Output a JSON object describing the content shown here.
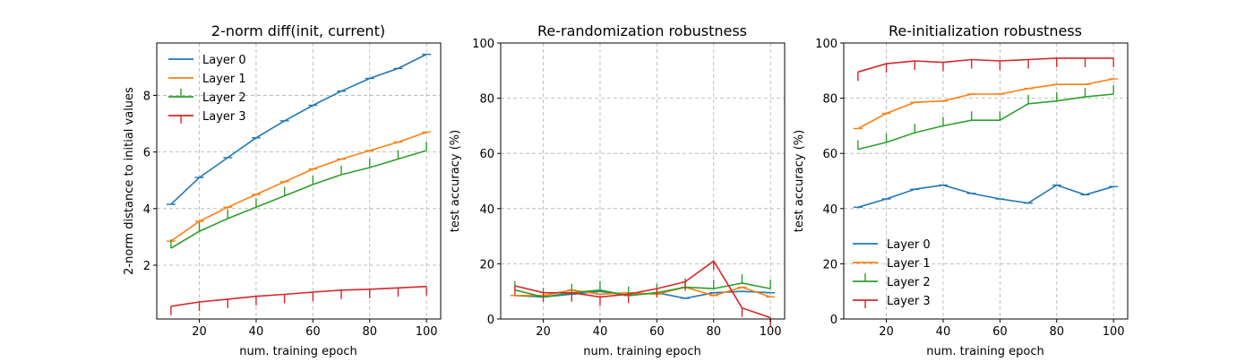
{
  "chart_data": [
    {
      "type": "line",
      "title": "2-norm diff(init, current)",
      "xlabel": "num. training epoch",
      "ylabel": "2-norm distance to initial values",
      "xlim": [
        5,
        105
      ],
      "ylim": [
        0.1,
        9.85
      ],
      "xticks": [
        20,
        40,
        60,
        80,
        100
      ],
      "yticks": [
        2,
        4,
        6,
        8
      ],
      "grid": true,
      "legend_position": "top-left",
      "x": [
        10,
        20,
        30,
        40,
        50,
        60,
        70,
        80,
        90,
        100
      ],
      "series": [
        {
          "name": "Layer 0",
          "color": "#1f77b4",
          "err_dir": "h",
          "values": [
            4.15,
            5.1,
            5.8,
            6.5,
            7.1,
            7.65,
            8.15,
            8.6,
            8.95,
            9.45
          ]
        },
        {
          "name": "Layer 1",
          "color": "#ff7f0e",
          "err_dir": "h",
          "values": [
            2.85,
            3.55,
            4.05,
            4.5,
            4.95,
            5.4,
            5.75,
            6.05,
            6.35,
            6.7
          ]
        },
        {
          "name": "Layer 2",
          "color": "#2ca02c",
          "err_dir": "up",
          "values": [
            2.6,
            3.2,
            3.65,
            4.05,
            4.45,
            4.85,
            5.2,
            5.45,
            5.75,
            6.05
          ]
        },
        {
          "name": "Layer 3",
          "color": "#d62728",
          "err_dir": "down",
          "values": [
            0.55,
            0.7,
            0.8,
            0.9,
            0.97,
            1.05,
            1.12,
            1.15,
            1.2,
            1.25
          ]
        }
      ]
    },
    {
      "type": "line",
      "title": "Re-randomization robustness",
      "xlabel": "num. training epoch",
      "ylabel": "test accuracy (%)",
      "xlim": [
        5,
        105
      ],
      "ylim": [
        0,
        100
      ],
      "xticks": [
        20,
        40,
        60,
        80,
        100
      ],
      "yticks": [
        0,
        20,
        40,
        60,
        80,
        100
      ],
      "grid": true,
      "x": [
        10,
        20,
        30,
        40,
        50,
        60,
        70,
        80,
        90,
        100
      ],
      "series": [
        {
          "name": "Layer 0",
          "color": "#1f77b4",
          "err_dir": "h",
          "values": [
            8.5,
            8.0,
            9.0,
            10.0,
            8.5,
            9.5,
            7.5,
            9.5,
            10.0,
            9.5
          ]
        },
        {
          "name": "Layer 1",
          "color": "#ff7f0e",
          "err_dir": "h",
          "values": [
            8.5,
            8.5,
            10.5,
            9.0,
            9.5,
            9.0,
            11.5,
            8.5,
            11.5,
            8.0
          ]
        },
        {
          "name": "Layer 2",
          "color": "#2ca02c",
          "err_dir": "up",
          "values": [
            10.5,
            8.0,
            9.5,
            10.5,
            8.5,
            9.5,
            11.5,
            11.0,
            13.0,
            11.0
          ]
        },
        {
          "name": "Layer 3",
          "color": "#d62728",
          "err_dir": "down",
          "values": [
            12.0,
            9.5,
            9.5,
            8.0,
            9.0,
            11.0,
            13.5,
            21.0,
            4.0,
            0.5
          ]
        }
      ]
    },
    {
      "type": "line",
      "title": "Re-initialization robustness",
      "xlabel": "num. training epoch",
      "ylabel": "test accuracy (%)",
      "xlim": [
        5,
        105
      ],
      "ylim": [
        0,
        100
      ],
      "xticks": [
        20,
        40,
        60,
        80,
        100
      ],
      "yticks": [
        0,
        20,
        40,
        60,
        80,
        100
      ],
      "grid": true,
      "legend_position": "lower-left",
      "x": [
        10,
        20,
        30,
        40,
        50,
        60,
        70,
        80,
        90,
        100
      ],
      "series": [
        {
          "name": "Layer 0",
          "color": "#1f77b4",
          "err_dir": "h",
          "values": [
            40.5,
            43.5,
            47.0,
            48.5,
            45.5,
            43.5,
            42.0,
            48.5,
            45.0,
            48.0
          ]
        },
        {
          "name": "Layer 1",
          "color": "#ff7f0e",
          "err_dir": "h",
          "values": [
            69.0,
            74.5,
            78.5,
            79.0,
            81.5,
            81.5,
            83.5,
            85.0,
            85.0,
            87.0
          ]
        },
        {
          "name": "Layer 2",
          "color": "#2ca02c",
          "err_dir": "up",
          "values": [
            61.5,
            64.0,
            67.5,
            70.0,
            72.0,
            72.0,
            78.0,
            79.0,
            80.5,
            81.5
          ]
        },
        {
          "name": "Layer 3",
          "color": "#d62728",
          "err_dir": "down",
          "values": [
            89.5,
            92.5,
            93.5,
            93.0,
            94.0,
            93.5,
            94.0,
            94.5,
            94.5,
            94.5
          ]
        }
      ]
    }
  ]
}
